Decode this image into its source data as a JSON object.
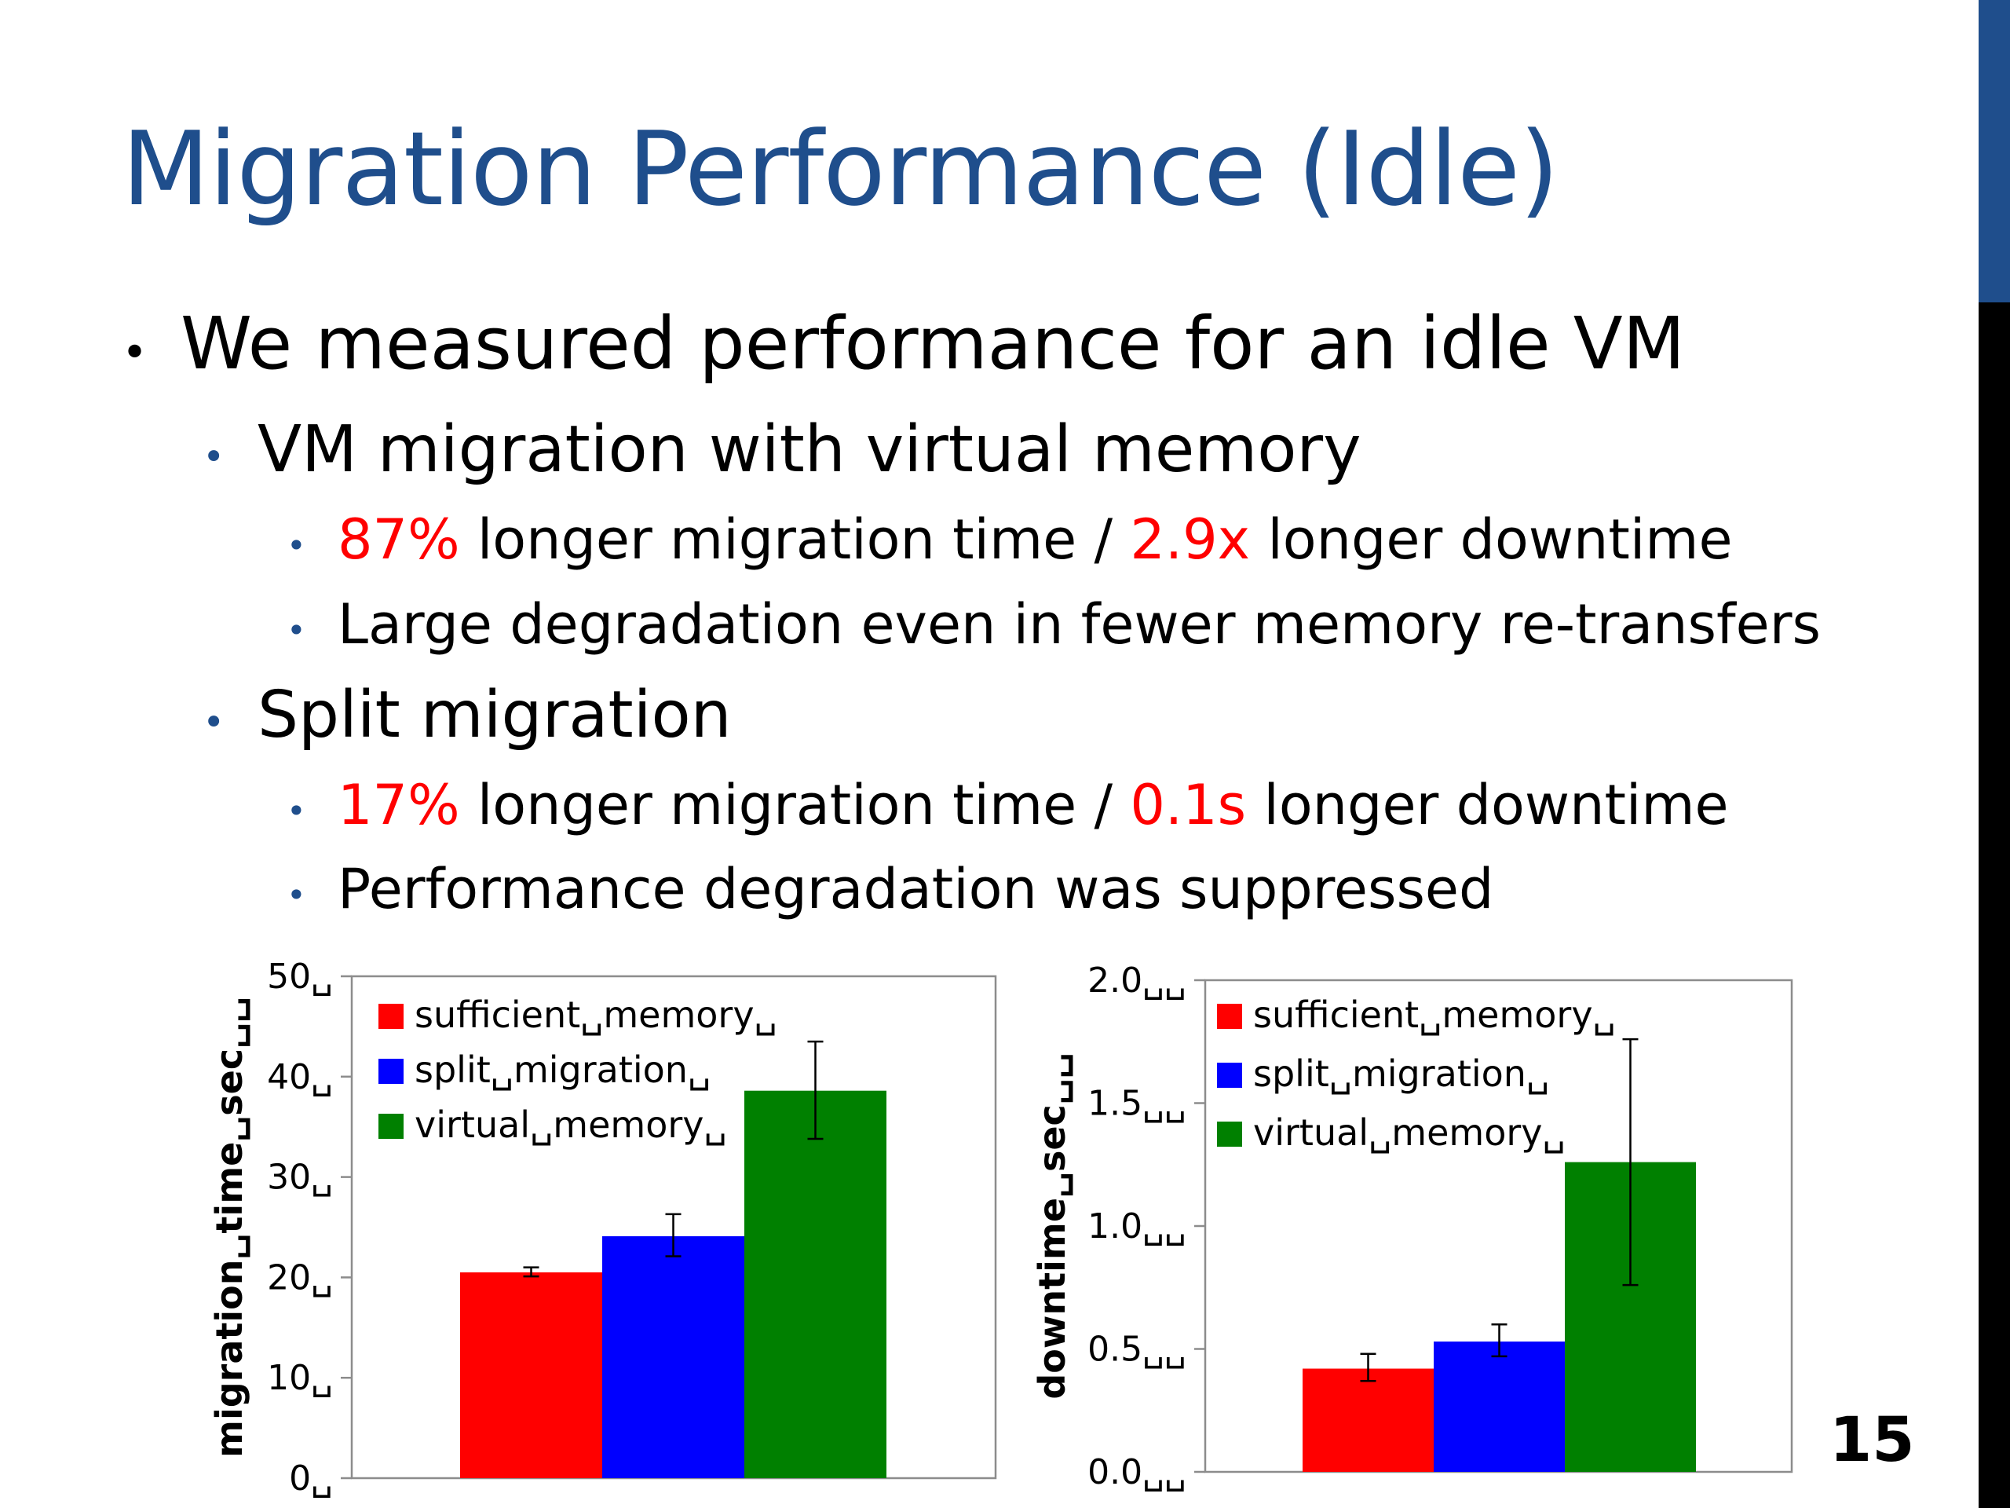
{
  "theme": {
    "title_color": "#1f4e8c",
    "accent_bar_color": "#1f4e8c",
    "side_bar_color": "#000000",
    "bullet_dot_color": "#1f4e8c",
    "highlight_color": "#ff0000"
  },
  "slide": {
    "title": "Migration Performance (Idle)",
    "page_number": "15",
    "bullets": [
      {
        "level": 1,
        "parts": [
          {
            "text": "We measured performance for an idle VM",
            "highlight": false
          }
        ]
      },
      {
        "level": 2,
        "parts": [
          {
            "text": "VM migration with virtual memory",
            "highlight": false
          }
        ]
      },
      {
        "level": 3,
        "parts": [
          {
            "text": "87%",
            "highlight": true
          },
          {
            "text": " longer migration time / ",
            "highlight": false
          },
          {
            "text": "2.9x",
            "highlight": true
          },
          {
            "text": " longer downtime",
            "highlight": false
          }
        ]
      },
      {
        "level": 3,
        "parts": [
          {
            "text": "Large degradation even in fewer memory re-transfers",
            "highlight": false
          }
        ]
      },
      {
        "level": 2,
        "parts": [
          {
            "text": "Split migration",
            "highlight": false
          }
        ]
      },
      {
        "level": 3,
        "parts": [
          {
            "text": "17%",
            "highlight": true
          },
          {
            "text": " longer migration time / ",
            "highlight": false
          },
          {
            "text": "0.1s",
            "highlight": true
          },
          {
            "text": " longer downtime",
            "highlight": false
          }
        ]
      },
      {
        "level": 3,
        "parts": [
          {
            "text": "Performance degradation was suppressed",
            "highlight": false
          }
        ]
      }
    ]
  },
  "chart_data": [
    {
      "type": "bar",
      "title": "",
      "xlabel": "",
      "ylabel": "migration␣time␣sec␣␣",
      "ylim": [
        0,
        50
      ],
      "yticks": [
        0,
        10,
        20,
        30,
        40,
        50
      ],
      "ytick_labels": [
        "0␣",
        "10␣",
        "20␣",
        "30␣",
        "40␣",
        "50␣"
      ],
      "grid": false,
      "legend_position": "top-left",
      "series": [
        {
          "name": "sufficient␣memory␣",
          "color": "#ff0000",
          "value": 20.5,
          "error": [
            20.1,
            21.0
          ]
        },
        {
          "name": "split␣migration␣",
          "color": "#0000ff",
          "value": 24.1,
          "error": [
            22.1,
            26.3
          ]
        },
        {
          "name": "virtual␣memory␣",
          "color": "#008000",
          "value": 38.6,
          "error": [
            33.8,
            43.5
          ]
        }
      ]
    },
    {
      "type": "bar",
      "title": "",
      "xlabel": "",
      "ylabel": "downtime␣sec␣␣",
      "ylim": [
        0,
        2.0
      ],
      "yticks": [
        0,
        0.5,
        1.0,
        1.5,
        2.0
      ],
      "ytick_labels": [
        "0.0␣␣",
        "0.5␣␣",
        "1.0␣␣",
        "1.5␣␣",
        "2.0␣␣"
      ],
      "grid": false,
      "legend_position": "top-left",
      "series": [
        {
          "name": "sufficient␣memory␣",
          "color": "#ff0000",
          "value": 0.42,
          "error": [
            0.37,
            0.48
          ]
        },
        {
          "name": "split␣migration␣",
          "color": "#0000ff",
          "value": 0.53,
          "error": [
            0.47,
            0.6
          ]
        },
        {
          "name": "virtual␣memory␣",
          "color": "#008000",
          "value": 1.26,
          "error": [
            0.76,
            1.76
          ]
        }
      ]
    }
  ]
}
